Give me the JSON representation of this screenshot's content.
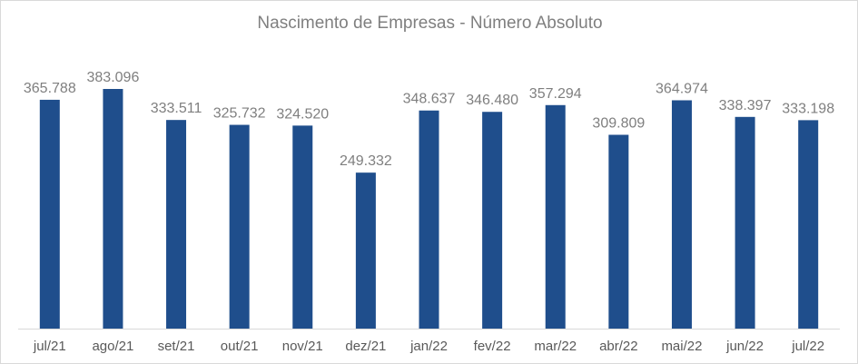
{
  "chart_data": {
    "type": "bar",
    "title": "Nascimento de Empresas - Número Absoluto",
    "categories": [
      "jul/21",
      "ago/21",
      "set/21",
      "out/21",
      "nov/21",
      "dez/21",
      "jan/22",
      "fev/22",
      "mar/22",
      "abr/22",
      "mai/22",
      "jun/22",
      "jul/22"
    ],
    "values": [
      365788,
      383096,
      333511,
      325732,
      324520,
      249332,
      348637,
      346480,
      357294,
      309809,
      364974,
      338397,
      333198
    ],
    "value_labels": [
      "365.788",
      "383.096",
      "333.511",
      "325.732",
      "324.520",
      "249.332",
      "348.637",
      "346.480",
      "357.294",
      "309.809",
      "364.974",
      "338.397",
      "333.198"
    ],
    "ylim": [
      0,
      400000
    ],
    "bar_color": "#1f4e8c",
    "grid": false,
    "legend": "none"
  }
}
